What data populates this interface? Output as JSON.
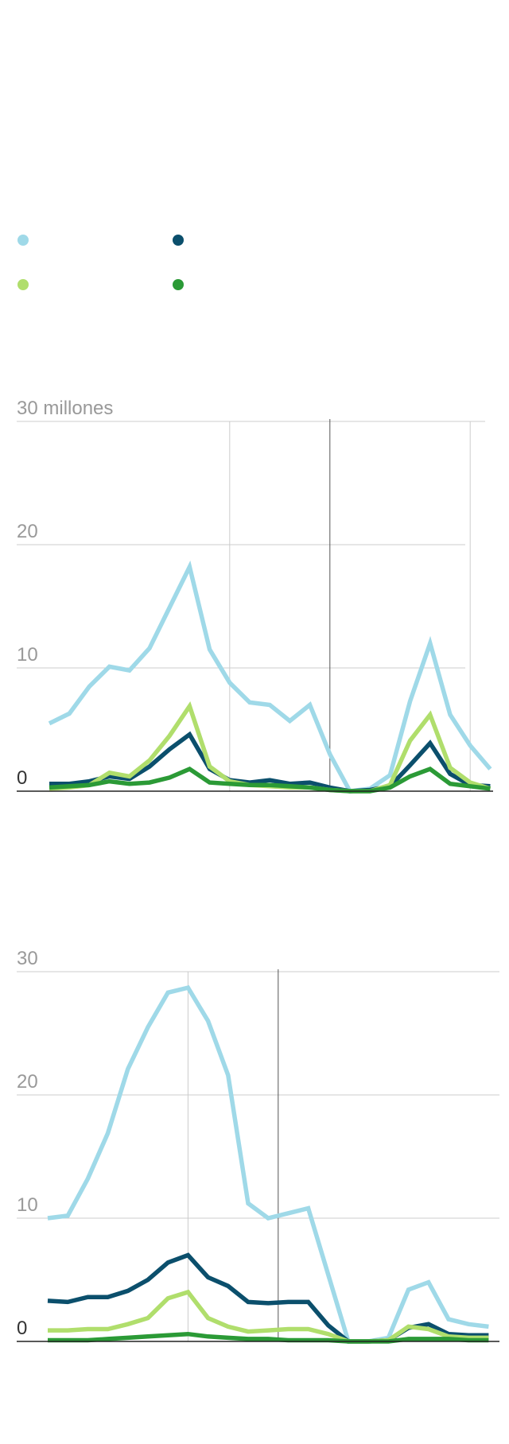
{
  "legend": {
    "items": [
      {
        "label": "",
        "color": "#9fd9e8"
      },
      {
        "label": "",
        "color": "#0b4f6c"
      },
      {
        "label": "",
        "color": "#b0de6c"
      },
      {
        "label": "",
        "color": "#2b9a36"
      }
    ]
  },
  "chart_data": [
    {
      "type": "line",
      "title": "",
      "xlabel": "",
      "ylabel": "",
      "ylim": [
        0,
        30
      ],
      "y_ticks": [
        0,
        10,
        20,
        30
      ],
      "y_tick_labels": [
        "0",
        "10",
        "20",
        "30 millones"
      ],
      "grid": true,
      "x": [
        0,
        1,
        2,
        3,
        4,
        5,
        6,
        7,
        8,
        9,
        10,
        11,
        12,
        13,
        14,
        15,
        16,
        17,
        18,
        19,
        20,
        21,
        22,
        23,
        24
      ],
      "reference_lines_x": [
        9,
        14,
        21
      ],
      "series": [
        {
          "color": "#9fd9e8",
          "values": [
            5.5,
            6.3,
            8.5,
            10.1,
            9.8,
            11.6,
            14.9,
            18.2,
            11.5,
            8.8,
            7.2,
            7.0,
            5.7,
            7.0,
            3.0,
            0.0,
            0.2,
            1.3,
            7.3,
            12.0,
            6.2,
            3.7,
            1.8,
            null,
            null
          ]
        },
        {
          "color": "#0b4f6c",
          "values": [
            0.6,
            0.6,
            0.8,
            1.2,
            1.0,
            2.0,
            3.4,
            4.6,
            1.8,
            0.9,
            0.7,
            0.9,
            0.6,
            0.7,
            0.3,
            0.0,
            0.1,
            0.4,
            2.1,
            3.9,
            1.4,
            0.5,
            0.4,
            null,
            null
          ]
        },
        {
          "color": "#b0de6c",
          "values": [
            0.2,
            0.3,
            0.5,
            1.5,
            1.2,
            2.5,
            4.5,
            6.9,
            2.0,
            0.8,
            0.5,
            0.4,
            0.3,
            0.3,
            0.1,
            0.0,
            0.0,
            0.5,
            4.1,
            6.2,
            1.9,
            0.7,
            0.2,
            null,
            null
          ]
        },
        {
          "color": "#2b9a36",
          "values": [
            0.3,
            0.4,
            0.5,
            0.8,
            0.6,
            0.7,
            1.1,
            1.8,
            0.7,
            0.6,
            0.5,
            0.5,
            0.4,
            0.3,
            0.1,
            0.0,
            0.0,
            0.3,
            1.2,
            1.8,
            0.6,
            0.4,
            0.2,
            null,
            null
          ]
        }
      ]
    },
    {
      "type": "line",
      "title": "",
      "xlabel": "",
      "ylabel": "",
      "ylim": [
        0,
        30
      ],
      "y_ticks": [
        0,
        10,
        20,
        30
      ],
      "y_tick_labels": [
        "0",
        "10",
        "20",
        "30"
      ],
      "grid": true,
      "x": [
        0,
        1,
        2,
        3,
        4,
        5,
        6,
        7,
        8,
        9,
        10,
        11,
        12,
        13,
        14,
        15,
        16,
        17,
        18,
        19,
        20,
        21,
        22,
        23,
        24
      ],
      "reference_lines_x": [
        7,
        11.5
      ],
      "series": [
        {
          "color": "#9fd9e8",
          "values": [
            10.0,
            10.2,
            13.2,
            16.9,
            22.1,
            25.5,
            28.3,
            28.7,
            26.0,
            21.6,
            11.2,
            10.0,
            10.4,
            10.8,
            5.4,
            0.0,
            0.0,
            0.3,
            4.2,
            4.8,
            1.8,
            1.4,
            1.2,
            null,
            null
          ]
        },
        {
          "color": "#0b4f6c",
          "values": [
            3.3,
            3.2,
            3.6,
            3.6,
            4.1,
            5.0,
            6.4,
            7.0,
            5.2,
            4.5,
            3.2,
            3.1,
            3.2,
            3.2,
            1.3,
            0.0,
            0.0,
            0.1,
            1.1,
            1.4,
            0.6,
            0.5,
            0.5,
            null,
            null
          ]
        },
        {
          "color": "#b0de6c",
          "values": [
            0.9,
            0.9,
            1.0,
            1.0,
            1.4,
            1.9,
            3.5,
            4.0,
            1.9,
            1.2,
            0.8,
            0.9,
            1.0,
            1.0,
            0.6,
            0.0,
            0.0,
            0.1,
            1.2,
            1.0,
            0.4,
            0.3,
            0.3,
            null,
            null
          ]
        },
        {
          "color": "#2b9a36",
          "values": [
            0.1,
            0.1,
            0.1,
            0.2,
            0.3,
            0.4,
            0.5,
            0.6,
            0.4,
            0.3,
            0.2,
            0.2,
            0.1,
            0.1,
            0.1,
            0.0,
            0.0,
            0.0,
            0.2,
            0.2,
            0.2,
            0.1,
            0.1,
            null,
            null
          ]
        }
      ]
    }
  ]
}
